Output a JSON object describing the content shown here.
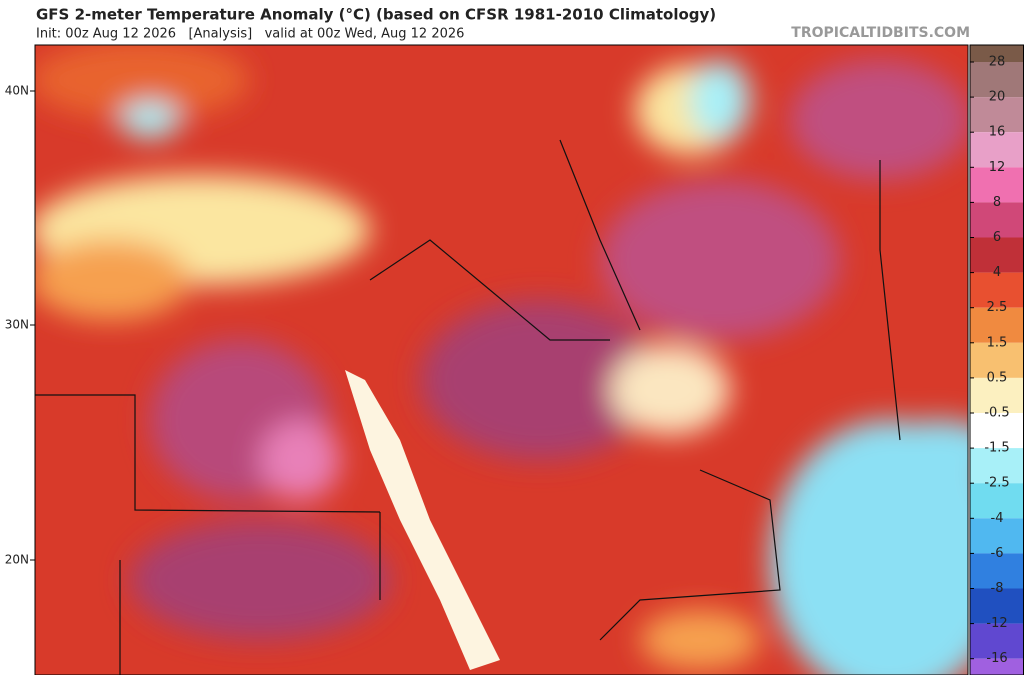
{
  "header": {
    "title": "GFS 2-meter Temperature Anomaly (°C) (based on CFSR 1981-2010 Climatology)",
    "subtitle": "Init: 00z Aug 12 2026   [Analysis]   valid at 00z Wed, Aug 12 2026",
    "watermark": "TROPICALTIDBITS.COM"
  },
  "map": {
    "latitude_labels": [
      "40N",
      "30N",
      "20N"
    ]
  },
  "colorbar": {
    "ticks": [
      28,
      20,
      16,
      12,
      8,
      6,
      4,
      2.5,
      1.5,
      0.5,
      -0.5,
      -1.5,
      -2.5,
      -4,
      -6,
      -8,
      -12,
      -16
    ],
    "colors": [
      "#7a5a48",
      "#a07878",
      "#c08a98",
      "#e8a0c8",
      "#f070b0",
      "#d04878",
      "#c03038",
      "#e85030",
      "#f08a40",
      "#f8c070",
      "#fcf0c0",
      "#ffffff",
      "#a8f0f8",
      "#70dcf0",
      "#50b8f0",
      "#3080e0",
      "#2050c0",
      "#6048d0",
      "#a060e0",
      "#e080f0"
    ]
  }
}
